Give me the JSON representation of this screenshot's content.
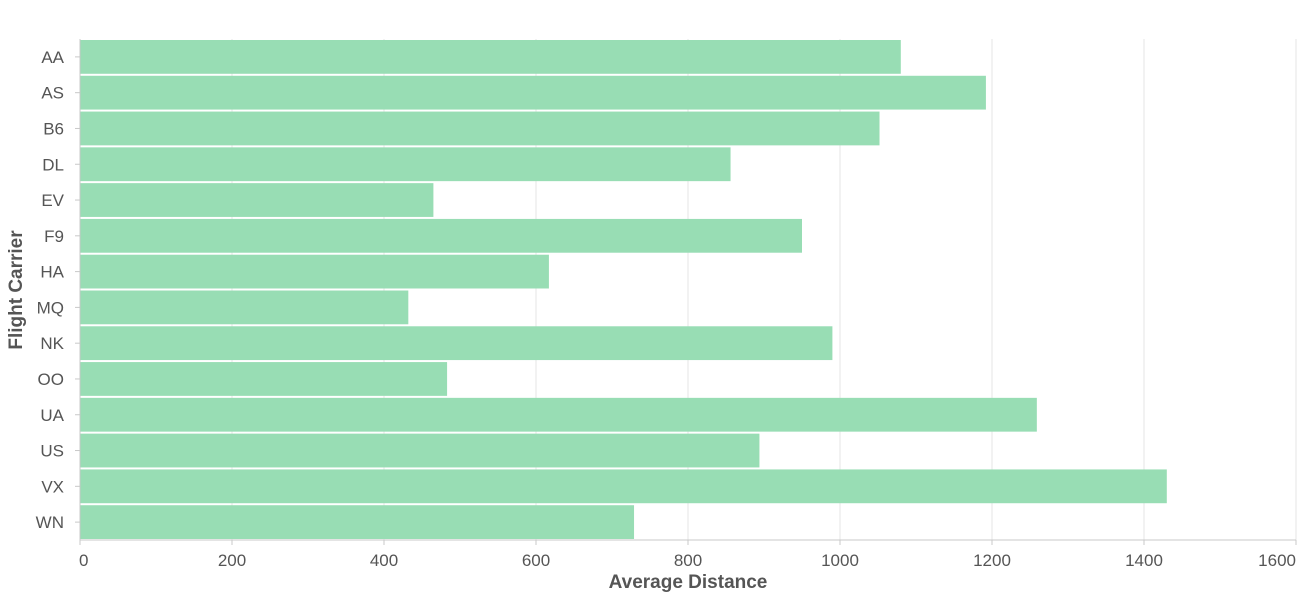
{
  "chart_data": {
    "type": "bar",
    "orientation": "horizontal",
    "title": "",
    "xlabel": "Average Distance",
    "ylabel": "Flight Carrier",
    "categories": [
      "AA",
      "AS",
      "B6",
      "DL",
      "EV",
      "F9",
      "HA",
      "MQ",
      "NK",
      "OO",
      "UA",
      "US",
      "VX",
      "WN"
    ],
    "values": [
      1080,
      1192,
      1052,
      856,
      465,
      950,
      617,
      432,
      990,
      483,
      1259,
      894,
      1430,
      729
    ],
    "xlim": [
      0,
      1600
    ],
    "xticks": [
      "0",
      "200",
      "400",
      "600",
      "800",
      "1000",
      "1200",
      "1400",
      "1600"
    ],
    "grid": true,
    "legend": "none",
    "colors": {
      "bar": "#98ddb4",
      "grid": "#e5e5e5",
      "axis": "#c8c8c8",
      "text": "#555555"
    }
  }
}
